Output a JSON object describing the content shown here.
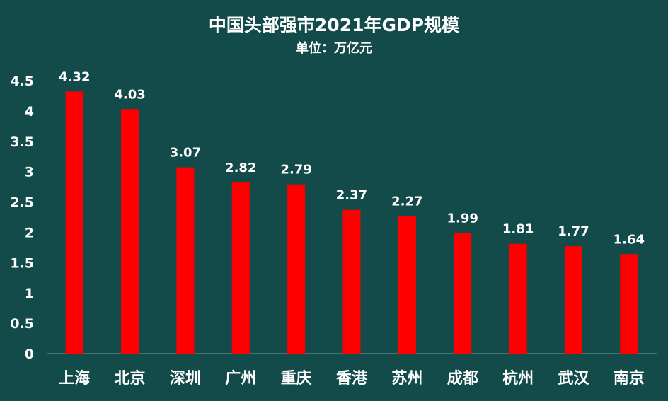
{
  "chart_data": {
    "type": "bar",
    "title": "中国头部强市2021年GDP规模",
    "subtitle": "单位：万亿元",
    "categories": [
      "上海",
      "北京",
      "深圳",
      "广州",
      "重庆",
      "香港",
      "苏州",
      "成都",
      "杭州",
      "武汉",
      "南京"
    ],
    "values": [
      4.32,
      4.03,
      3.07,
      2.82,
      2.79,
      2.37,
      2.27,
      1.99,
      1.81,
      1.77,
      1.64
    ],
    "value_labels": [
      "4.32",
      "4.03",
      "3.07",
      "2.82",
      "2.79",
      "2.37",
      "2.27",
      "1.99",
      "1.81",
      "1.77",
      "1.64"
    ],
    "y_ticks": [
      "0",
      "0.5",
      "1",
      "1.5",
      "2",
      "2.5",
      "3",
      "3.5",
      "4",
      "4.5"
    ],
    "ylim": [
      0,
      4.5
    ],
    "grid": false,
    "legend": "none",
    "colors": {
      "background": "#134b4b",
      "bar": "#ff0000",
      "text": "#ffffff",
      "axis": "#7a9a9a"
    }
  }
}
